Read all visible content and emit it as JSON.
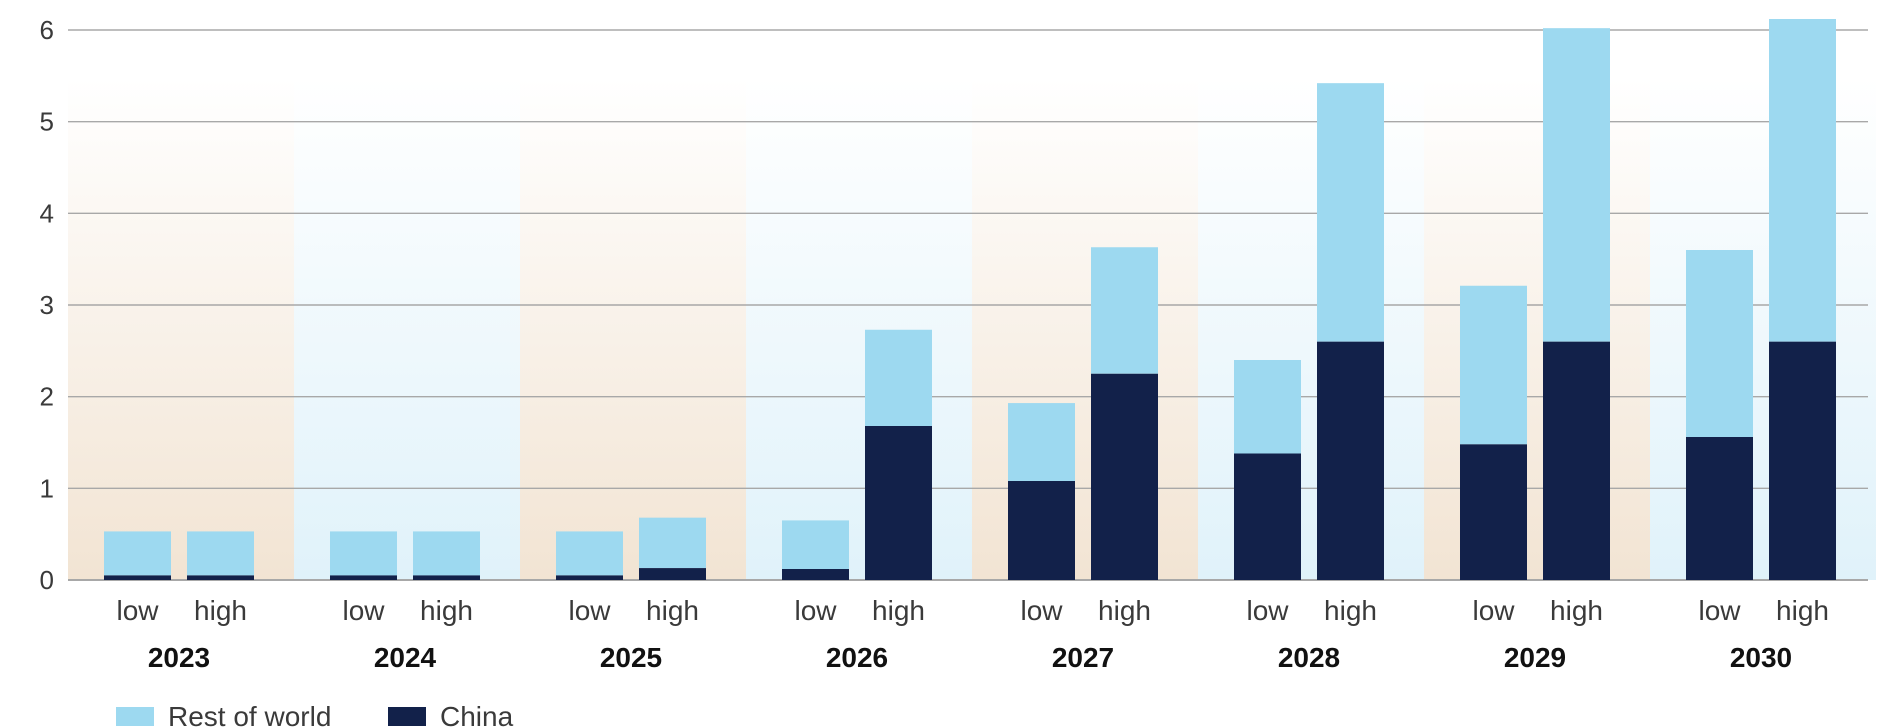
{
  "colors": {
    "rest_of_world": "#9dd9f0",
    "china": "#12214a",
    "band_warm": "#f2e4d3",
    "band_cool": "#e0f2fa",
    "gridline": "#a8a8a8"
  },
  "chart_data": {
    "type": "bar",
    "stacked": true,
    "title": "",
    "xlabel": "",
    "ylabel": "",
    "ylim": [
      0,
      6
    ],
    "y_ticks": [
      "0",
      "1",
      "2",
      "3",
      "4",
      "5",
      "6"
    ],
    "grid": true,
    "legend_position": "bottom-left",
    "groups": [
      "2023",
      "2024",
      "2025",
      "2026",
      "2027",
      "2028",
      "2029",
      "2030"
    ],
    "scenarios": [
      "low",
      "high"
    ],
    "series": [
      {
        "name": "Rest of world",
        "color_key": "rest_of_world",
        "values": [
          [
            0.48,
            0.48
          ],
          [
            0.48,
            0.48
          ],
          [
            0.48,
            0.55
          ],
          [
            0.53,
            1.05
          ],
          [
            0.85,
            1.38
          ],
          [
            1.02,
            2.82
          ],
          [
            1.73,
            3.42
          ],
          [
            2.04,
            3.52
          ]
        ]
      },
      {
        "name": "China",
        "color_key": "china",
        "values": [
          [
            0.05,
            0.05
          ],
          [
            0.05,
            0.05
          ],
          [
            0.05,
            0.13
          ],
          [
            0.12,
            1.68
          ],
          [
            1.08,
            2.25
          ],
          [
            1.38,
            2.6
          ],
          [
            1.48,
            2.6
          ],
          [
            1.56,
            2.6
          ]
        ]
      }
    ]
  }
}
